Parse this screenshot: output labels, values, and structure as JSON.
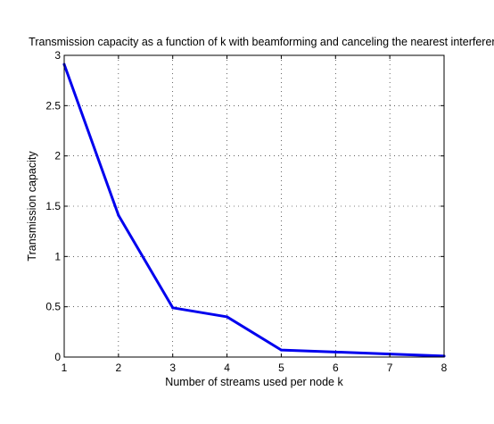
{
  "chart_data": {
    "type": "line",
    "title": "Transmission capacity as a function of k with beamforming and canceling the nearest interferers",
    "xlabel": "Number of streams used per node k",
    "ylabel": "Transmission capacity",
    "x": [
      1,
      2,
      3,
      4,
      5,
      6,
      7,
      8
    ],
    "xlim": [
      1,
      8
    ],
    "ylim": [
      0,
      3
    ],
    "xticks": [
      1,
      2,
      3,
      4,
      5,
      6,
      7,
      8
    ],
    "yticks": [
      0,
      0.5,
      1,
      1.5,
      2,
      2.5,
      3
    ],
    "xtick_labels": [
      "1",
      "2",
      "3",
      "4",
      "5",
      "6",
      "7",
      "8"
    ],
    "ytick_labels": [
      "0",
      "0.5",
      "1",
      "1.5",
      "2",
      "2.5",
      "3"
    ],
    "grid": true,
    "series": [
      {
        "values": [
          2.91,
          1.41,
          0.49,
          0.4,
          0.07,
          0.05,
          0.03,
          0.01
        ],
        "color": "#0000ee"
      }
    ]
  }
}
